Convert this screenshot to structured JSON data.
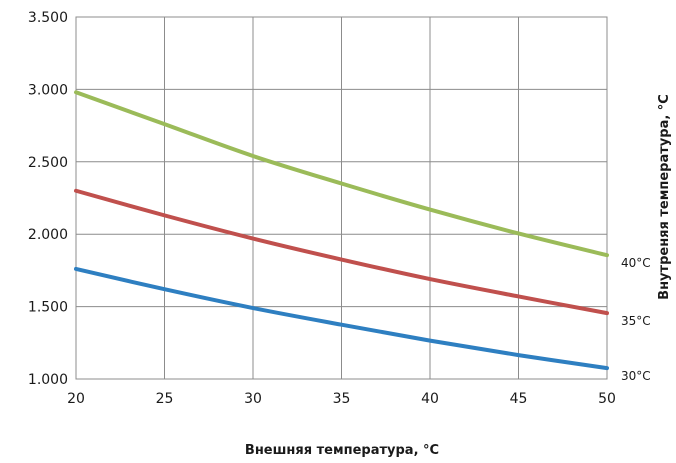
{
  "chart_data": {
    "type": "line",
    "xlabel": "Внешняя температура, °C",
    "ylabel": "Внутреняя температура, °C",
    "x": [
      20,
      25,
      30,
      35,
      40,
      45,
      50
    ],
    "xlim": [
      20,
      50
    ],
    "ylim": [
      1000,
      3500
    ],
    "xticks": [
      "20",
      "25",
      "30",
      "35",
      "40",
      "45",
      "50"
    ],
    "yticks": [
      "1.000",
      "1.500",
      "2.000",
      "2.500",
      "3.000",
      "3.500"
    ],
    "grid": true,
    "series": [
      {
        "name": "30°C",
        "color": "#2e7fc1",
        "values": [
          1760,
          1620,
          1490,
          1375,
          1265,
          1165,
          1075
        ]
      },
      {
        "name": "35°C",
        "color": "#c0504d",
        "values": [
          2300,
          2130,
          1970,
          1825,
          1690,
          1570,
          1455
        ]
      },
      {
        "name": "40°C",
        "color": "#9bbb59",
        "values": [
          2980,
          2760,
          2540,
          2350,
          2170,
          2005,
          1855
        ]
      }
    ]
  }
}
